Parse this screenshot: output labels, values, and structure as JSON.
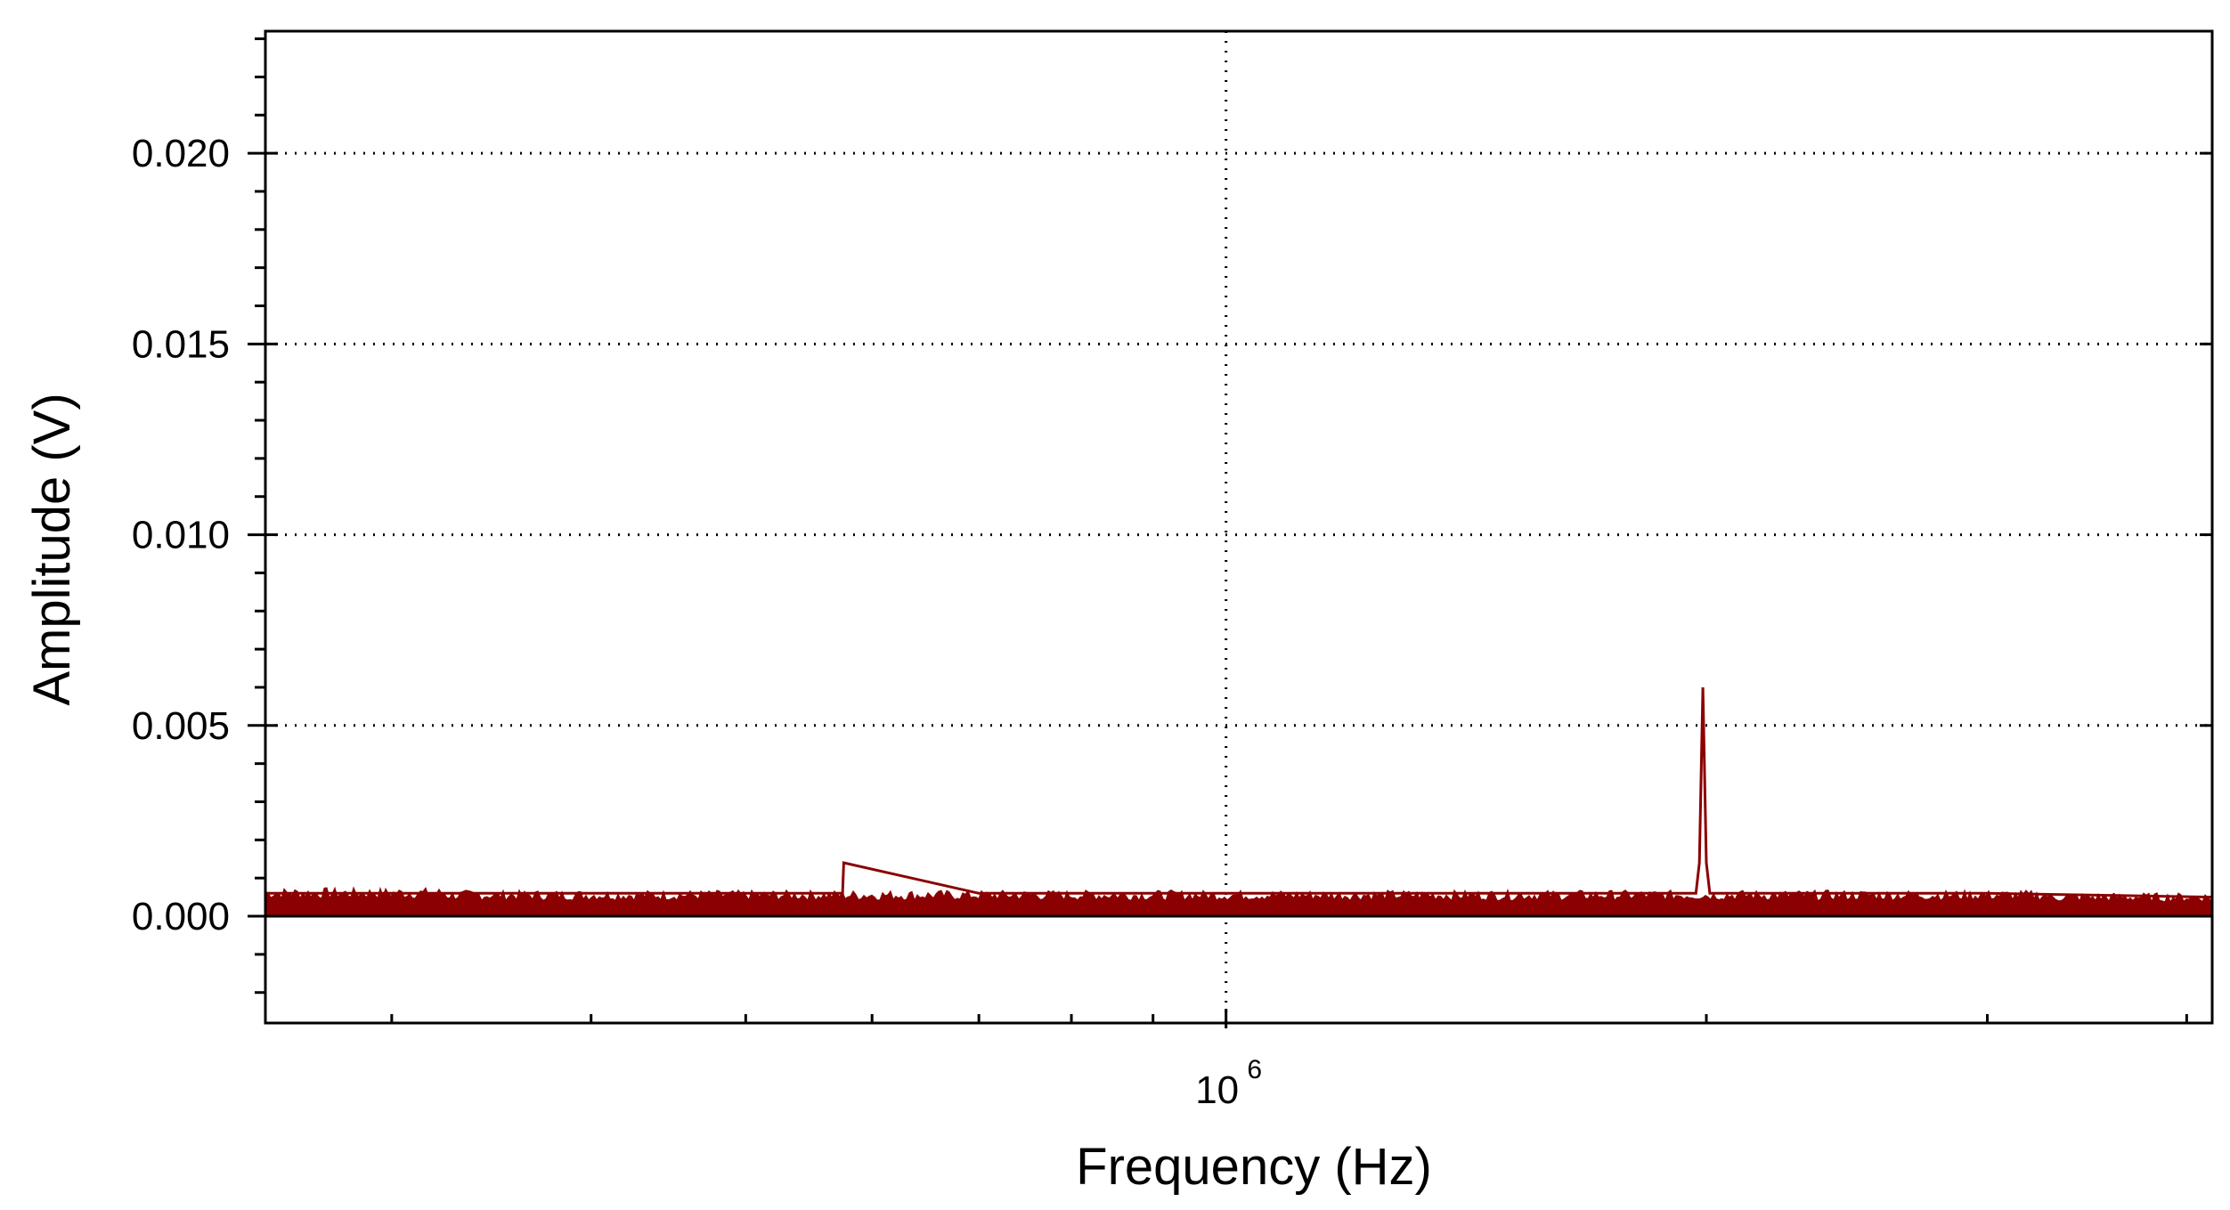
{
  "chart_data": {
    "type": "line",
    "xlabel": "Frequency (Hz)",
    "ylabel": "Amplitude (V)",
    "x_scale": "log",
    "xlim": [
      250000,
      4150000
    ],
    "ylim": [
      -0.0028,
      0.0232
    ],
    "x_tick_labels": [
      {
        "value": 1000000,
        "base": "10",
        "exponent": "6"
      }
    ],
    "y_tick_labels": [
      {
        "value": 0.0,
        "label": "0.000"
      },
      {
        "value": 0.005,
        "label": "0.005"
      },
      {
        "value": 0.01,
        "label": "0.010"
      },
      {
        "value": 0.015,
        "label": "0.015"
      },
      {
        "value": 0.02,
        "label": "0.020"
      }
    ],
    "grid": "dotted, major ticks",
    "line_color": "#8b0000",
    "series": [
      {
        "noise_floor": 0.00055,
        "x": [
          250000,
          400000,
          500000,
          575000,
          576000,
          700000,
          1000000,
          1400000,
          1970000,
          1980000,
          1990000,
          2000000,
          2010000,
          2020000,
          3000000,
          4150000
        ],
        "y": [
          0.0006,
          0.0006,
          0.0006,
          0.0006,
          0.0014,
          0.0006,
          0.0006,
          0.0006,
          0.0006,
          0.0014,
          0.006,
          0.0014,
          0.0006,
          0.0006,
          0.0006,
          0.0005
        ]
      }
    ]
  }
}
